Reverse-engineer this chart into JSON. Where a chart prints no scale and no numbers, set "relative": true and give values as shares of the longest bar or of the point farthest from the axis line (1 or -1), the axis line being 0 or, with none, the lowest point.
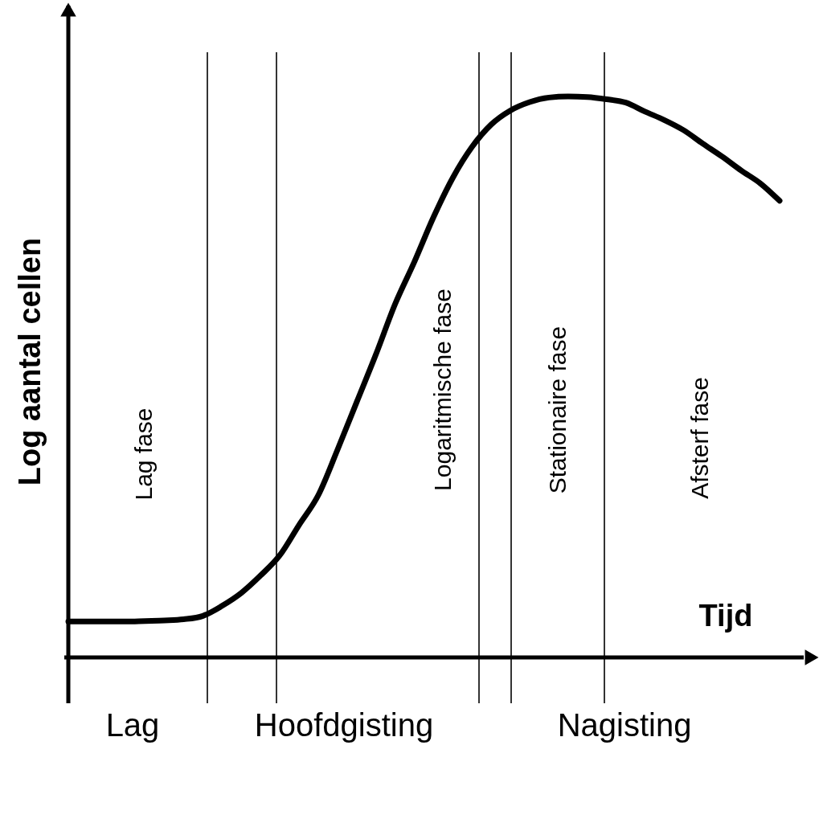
{
  "chart_data": {
    "type": "line",
    "relative": true,
    "xlabel": "Tijd",
    "ylabel": "Log aantal cellen",
    "tick_labels": false,
    "line_style": "solid",
    "categories": [
      null,
      null,
      null,
      null,
      null,
      null,
      null,
      null,
      null,
      null,
      null,
      null,
      null,
      null,
      null,
      null,
      null,
      null,
      null,
      null,
      null,
      null,
      null,
      null,
      null,
      null,
      null,
      null,
      null,
      null,
      null,
      null,
      null,
      null,
      null,
      null,
      null,
      null
    ],
    "series": [
      {
        "color": "#000000",
        "values": [
          0.064,
          0.064,
          0.064,
          0.064,
          0.065,
          0.066,
          0.068,
          0.074,
          0.092,
          0.115,
          0.146,
          0.182,
          0.236,
          0.289,
          0.37,
          0.455,
          0.54,
          0.63,
          0.705,
          0.785,
          0.855,
          0.91,
          0.95,
          0.975,
          0.99,
          0.998,
          1,
          0.999,
          0.995,
          0.989,
          0.973,
          0.958,
          0.94,
          0.916,
          0.893,
          0.868,
          0.845,
          0.814
        ]
      }
    ],
    "annotations": [
      "Lag fase",
      "Logaritmische fase",
      "Stationaire fase",
      "Afsterf fase",
      "Lag",
      "Hoofdgisting",
      "Nagisting"
    ]
  }
}
